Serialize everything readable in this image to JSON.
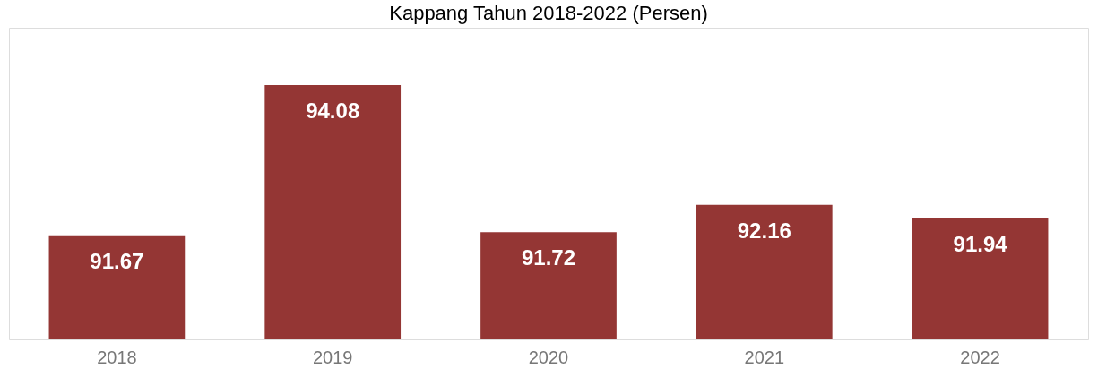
{
  "chart_data": {
    "type": "bar",
    "title": "Kappang Tahun 2018-2022 (Persen)",
    "categories": [
      "2018",
      "2019",
      "2020",
      "2021",
      "2022"
    ],
    "values": [
      91.67,
      94.08,
      91.72,
      92.16,
      91.94
    ],
    "color": "#943634",
    "ylim": [
      90,
      95
    ],
    "data_labels": true
  }
}
